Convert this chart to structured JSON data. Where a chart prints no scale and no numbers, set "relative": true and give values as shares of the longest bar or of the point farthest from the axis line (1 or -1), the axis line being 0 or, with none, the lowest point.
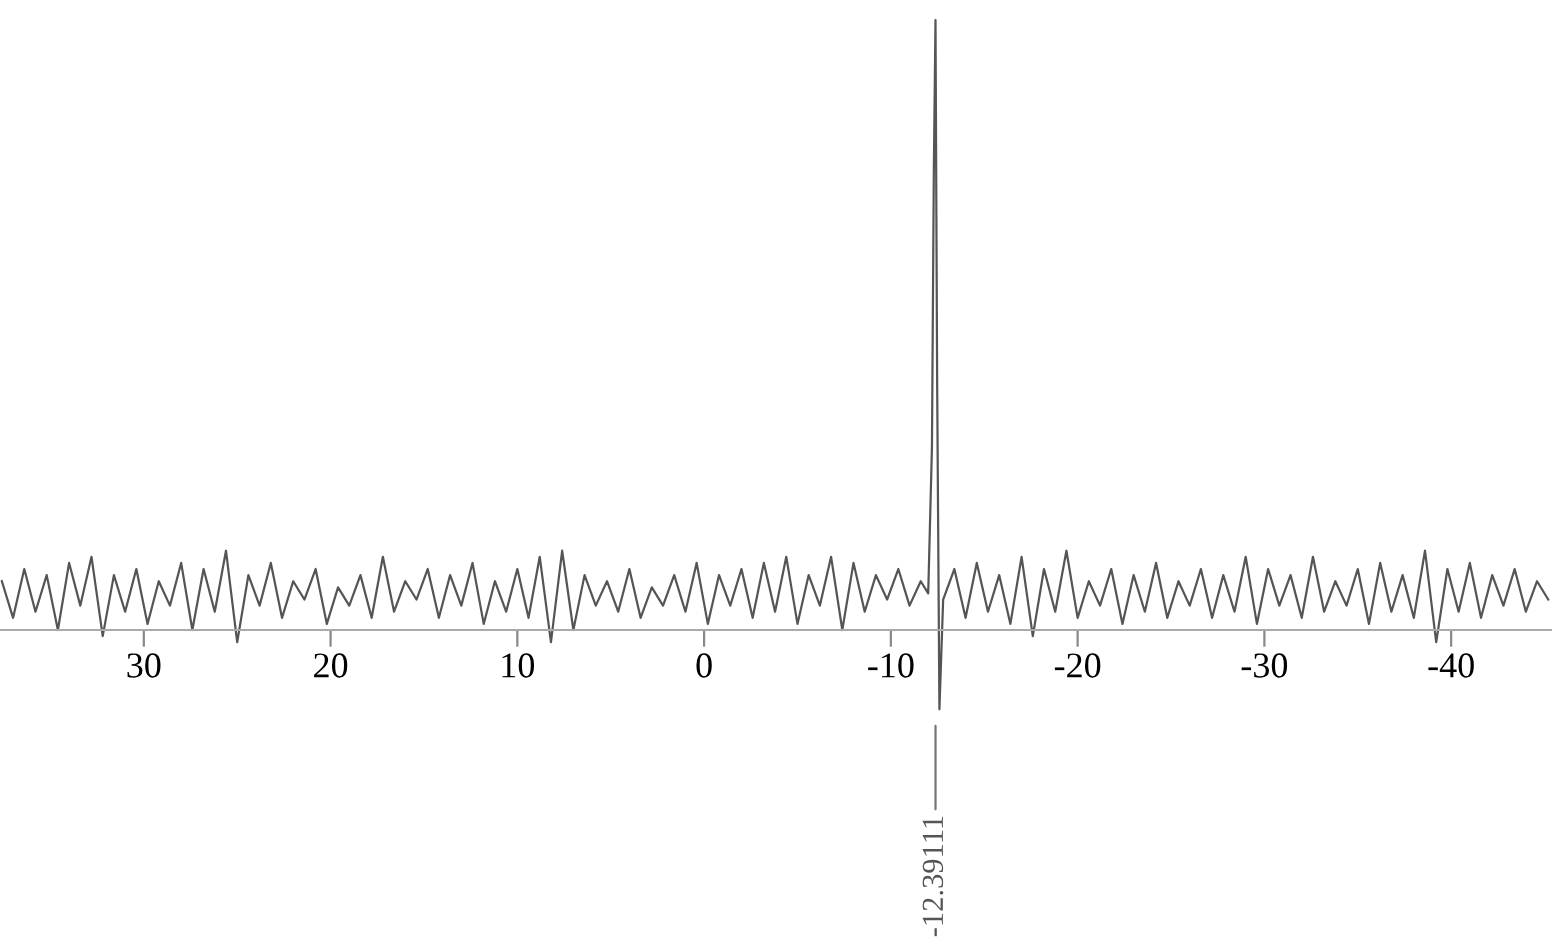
{
  "chart_data": {
    "type": "line",
    "relative": true,
    "tick_labels": "x",
    "color": "#555555",
    "x": [
      37.6,
      37.0,
      36.4,
      35.8,
      35.2,
      34.6,
      34.0,
      33.4,
      32.8,
      32.2,
      31.6,
      31.0,
      30.4,
      29.8,
      29.2,
      28.6,
      28.0,
      27.4,
      26.8,
      26.2,
      25.6,
      25.0,
      24.4,
      23.8,
      23.2,
      22.6,
      22.0,
      21.4,
      20.8,
      20.2,
      19.6,
      19.0,
      18.4,
      17.8,
      17.2,
      16.6,
      16.0,
      15.4,
      14.8,
      14.2,
      13.6,
      13.0,
      12.4,
      11.8,
      11.2,
      10.6,
      10.0,
      9.4,
      8.8,
      8.2,
      7.6,
      7.0,
      6.4,
      5.8,
      5.2,
      4.6,
      4.0,
      3.4,
      2.8,
      2.2,
      1.6,
      1.0,
      0.4,
      -0.2,
      -0.8,
      -1.4,
      -2.0,
      -2.6,
      -3.2,
      -3.8,
      -4.4,
      -5.0,
      -5.6,
      -6.2,
      -6.8,
      -7.4,
      -8.0,
      -8.6,
      -9.2,
      -9.8,
      -10.4,
      -11.0,
      -11.6,
      -12.0,
      -12.2,
      -12.3,
      -12.39,
      -12.48,
      -12.6,
      -12.8,
      -13.4,
      -14.0,
      -14.6,
      -15.2,
      -15.8,
      -16.4,
      -17.0,
      -17.6,
      -18.2,
      -18.8,
      -19.4,
      -20.0,
      -20.6,
      -21.2,
      -21.8,
      -22.4,
      -23.0,
      -23.6,
      -24.2,
      -24.8,
      -25.4,
      -26.0,
      -26.6,
      -27.2,
      -27.8,
      -28.4,
      -29.0,
      -29.6,
      -30.2,
      -30.8,
      -31.4,
      -32.0,
      -32.6,
      -33.2,
      -33.8,
      -34.4,
      -35.0,
      -35.6,
      -36.2,
      -36.8,
      -37.4,
      -38.0,
      -38.6,
      -39.2,
      -39.8,
      -40.4,
      -41.0,
      -41.6,
      -42.2,
      -42.8,
      -43.4,
      -44.0,
      -44.6,
      -45.2
    ],
    "values": [
      0.08,
      0.02,
      0.1,
      0.03,
      0.09,
      0.0,
      0.11,
      0.04,
      0.12,
      -0.01,
      0.09,
      0.03,
      0.1,
      0.01,
      0.08,
      0.04,
      0.11,
      0.0,
      0.1,
      0.03,
      0.13,
      -0.02,
      0.09,
      0.04,
      0.11,
      0.02,
      0.08,
      0.05,
      0.1,
      0.01,
      0.07,
      0.04,
      0.09,
      0.02,
      0.12,
      0.03,
      0.08,
      0.05,
      0.1,
      0.02,
      0.09,
      0.04,
      0.11,
      0.01,
      0.08,
      0.03,
      0.1,
      0.02,
      0.12,
      -0.02,
      0.13,
      0.0,
      0.09,
      0.04,
      0.08,
      0.03,
      0.1,
      0.02,
      0.07,
      0.04,
      0.09,
      0.03,
      0.11,
      0.01,
      0.09,
      0.04,
      0.1,
      0.02,
      0.11,
      0.03,
      0.12,
      0.01,
      0.09,
      0.04,
      0.12,
      0.0,
      0.11,
      0.03,
      0.09,
      0.05,
      0.1,
      0.04,
      0.08,
      0.06,
      0.3,
      0.75,
      1,
      0.4,
      -0.13,
      0.05,
      0.1,
      0.02,
      0.11,
      0.03,
      0.09,
      0.01,
      0.12,
      -0.01,
      0.1,
      0.03,
      0.13,
      0.02,
      0.08,
      0.04,
      0.1,
      0.01,
      0.09,
      0.03,
      0.11,
      0.02,
      0.08,
      0.04,
      0.1,
      0.02,
      0.09,
      0.03,
      0.12,
      0.01,
      0.1,
      0.04,
      0.09,
      0.02,
      0.12,
      0.03,
      0.08,
      0.04,
      0.1,
      0.01,
      0.11,
      0.03,
      0.09,
      0.02,
      0.13,
      -0.02,
      0.1,
      0.03,
      0.11,
      0.02,
      0.09,
      0.04,
      0.1,
      0.03,
      0.08,
      0.05
    ],
    "xlim": [
      37.7,
      -45.4
    ],
    "xticks": [
      30,
      20,
      10,
      0,
      -10,
      -20,
      -30,
      -40
    ],
    "annotations": [
      {
        "text": "-12.39111",
        "x": -12.39111,
        "y": -0.13
      }
    ]
  }
}
